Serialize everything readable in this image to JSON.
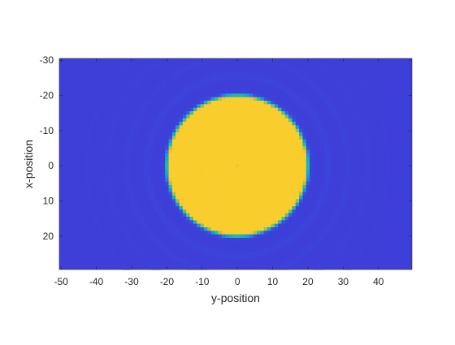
{
  "chart_data": {
    "type": "heatmap",
    "title": "",
    "xlabel": "y-position",
    "ylabel": "x-position",
    "xlim": [
      -50.5,
      49.5
    ],
    "ylim": [
      -30.5,
      29.5
    ],
    "y_reversed": true,
    "x_ticks": [
      -50,
      -40,
      -30,
      -20,
      -10,
      0,
      10,
      20,
      30,
      40
    ],
    "y_ticks": [
      -30,
      -20,
      -10,
      0,
      10,
      20
    ],
    "x_tick_labels": [
      "-50",
      "-40",
      "-30",
      "-20",
      "-10",
      "0",
      "10",
      "20",
      "30",
      "40"
    ],
    "y_tick_labels": [
      "-30",
      "-20",
      "-10",
      "0",
      "10",
      "20"
    ],
    "grid": false,
    "colormap": "parula",
    "background_value": 0,
    "disk": {
      "center": [
        0,
        0
      ],
      "radius": 20,
      "value": 1
    },
    "colors": {
      "low": "#3e3fd8",
      "high": "#f9d12a"
    }
  }
}
